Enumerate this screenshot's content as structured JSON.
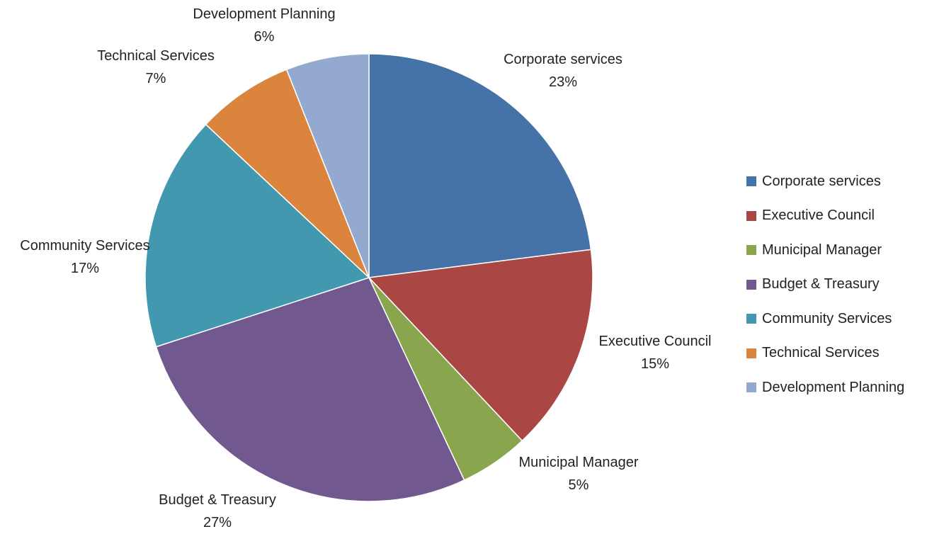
{
  "chart_data": {
    "type": "pie",
    "title": "",
    "legend_position": "right",
    "slices": [
      {
        "label": "Corporate services",
        "value": 23,
        "display": "23%",
        "color": "#4572A7"
      },
      {
        "label": "Executive Council",
        "value": 15,
        "display": "15%",
        "color": "#AA4643"
      },
      {
        "label": "Municipal Manager",
        "value": 5,
        "display": "5%",
        "color": "#89A54E"
      },
      {
        "label": "Budget & Treasury",
        "value": 27,
        "display": "27%",
        "color": "#71588F"
      },
      {
        "label": "Community Services",
        "value": 17,
        "display": "17%",
        "color": "#4198AF"
      },
      {
        "label": "Technical Services",
        "value": 7,
        "display": "7%",
        "color": "#DB843D"
      },
      {
        "label": "Development Planning",
        "value": 6,
        "display": "6%",
        "color": "#93A9CF"
      }
    ]
  }
}
